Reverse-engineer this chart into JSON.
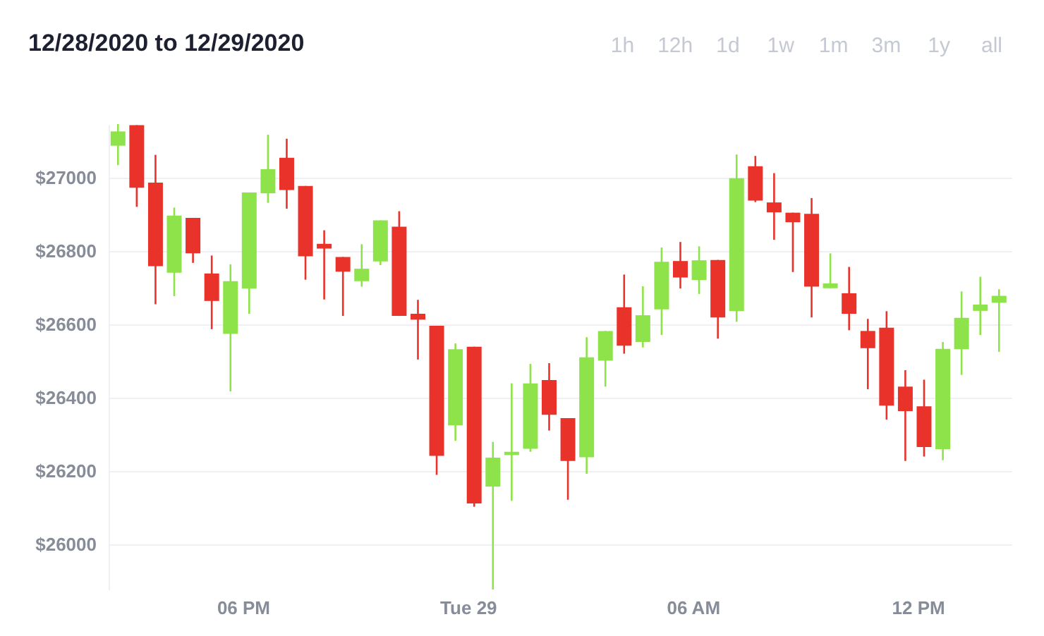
{
  "chart_data": {
    "type": "candlestick",
    "title": "12/28/2020 to 12/29/2020",
    "annotations": [
      "1h",
      "12h",
      "1d",
      "1w",
      "1m",
      "3m",
      "1y",
      "all"
    ],
    "x": [
      "2020-12-28T14:40",
      "2020-12-28T15:10",
      "2020-12-28T15:40",
      "2020-12-28T16:10",
      "2020-12-28T16:40",
      "2020-12-28T17:10",
      "2020-12-28T17:40",
      "2020-12-28T18:10",
      "2020-12-28T18:40",
      "2020-12-28T19:10",
      "2020-12-28T19:40",
      "2020-12-28T20:10",
      "2020-12-28T20:40",
      "2020-12-28T21:10",
      "2020-12-28T21:40",
      "2020-12-28T22:10",
      "2020-12-28T22:40",
      "2020-12-28T23:10",
      "2020-12-28T23:40",
      "2020-12-29T00:10",
      "2020-12-29T00:40",
      "2020-12-29T01:10",
      "2020-12-29T01:40",
      "2020-12-29T02:10",
      "2020-12-29T02:40",
      "2020-12-29T03:10",
      "2020-12-29T03:40",
      "2020-12-29T04:10",
      "2020-12-29T04:40",
      "2020-12-29T05:10",
      "2020-12-29T05:40",
      "2020-12-29T06:10",
      "2020-12-29T06:40",
      "2020-12-29T07:10",
      "2020-12-29T07:40",
      "2020-12-29T08:10",
      "2020-12-29T08:40",
      "2020-12-29T09:10",
      "2020-12-29T09:40",
      "2020-12-29T10:10",
      "2020-12-29T10:40",
      "2020-12-29T11:10",
      "2020-12-29T11:40",
      "2020-12-29T12:10",
      "2020-12-29T12:40",
      "2020-12-29T13:10",
      "2020-12-29T13:40",
      "2020-12-29T14:10"
    ],
    "ohlc": [
      [
        27088,
        27147,
        27035,
        27127
      ],
      [
        27144,
        27144,
        26921,
        26973
      ],
      [
        26987,
        27063,
        26655,
        26759
      ],
      [
        26741,
        26919,
        26677,
        26897
      ],
      [
        26891,
        26891,
        26768,
        26794
      ],
      [
        26739,
        26788,
        26587,
        26664
      ],
      [
        26574,
        26764,
        26417,
        26718
      ],
      [
        26698,
        26960,
        26629,
        26960
      ],
      [
        26958,
        27118,
        26932,
        27024
      ],
      [
        27055,
        27107,
        26916,
        26967
      ],
      [
        26978,
        26978,
        26722,
        26786
      ],
      [
        26820,
        26857,
        26668,
        26807
      ],
      [
        26784,
        26784,
        26623,
        26744
      ],
      [
        26718,
        26819,
        26703,
        26752
      ],
      [
        26772,
        26884,
        26762,
        26884
      ],
      [
        26867,
        26909,
        26623,
        26623
      ],
      [
        26629,
        26667,
        26504,
        26613
      ],
      [
        26596,
        26596,
        26189,
        26241
      ],
      [
        26324,
        26548,
        26282,
        26532
      ],
      [
        26539,
        26539,
        26102,
        26111
      ],
      [
        26157,
        26279,
        25876,
        26236
      ],
      [
        26243,
        26439,
        26118,
        26252
      ],
      [
        26260,
        26492,
        26252,
        26439
      ],
      [
        26448,
        26494,
        26310,
        26353
      ],
      [
        26344,
        26344,
        26121,
        26227
      ],
      [
        26237,
        26565,
        26192,
        26510
      ],
      [
        26501,
        26582,
        26430,
        26582
      ],
      [
        26647,
        26736,
        26520,
        26542
      ],
      [
        26552,
        26704,
        26537,
        26625
      ],
      [
        26641,
        26810,
        26571,
        26771
      ],
      [
        26773,
        26825,
        26698,
        26728
      ],
      [
        26721,
        26813,
        26683,
        26775
      ],
      [
        26776,
        26776,
        26561,
        26619
      ],
      [
        26636,
        27064,
        26607,
        26999
      ],
      [
        27032,
        27060,
        26934,
        26938
      ],
      [
        26933,
        27013,
        26831,
        26906
      ],
      [
        26905,
        26905,
        26743,
        26879
      ],
      [
        26902,
        26945,
        26619,
        26703
      ],
      [
        26699,
        26794,
        26699,
        26712
      ],
      [
        26685,
        26757,
        26584,
        26629
      ],
      [
        26582,
        26615,
        26423,
        26535
      ],
      [
        26591,
        26636,
        26340,
        26378
      ],
      [
        26430,
        26475,
        26227,
        26363
      ],
      [
        26376,
        26449,
        26239,
        26265
      ],
      [
        26259,
        26552,
        26229,
        26533
      ],
      [
        26532,
        26690,
        26462,
        26618
      ],
      [
        26637,
        26730,
        26571,
        26654
      ],
      [
        26659,
        26696,
        26525,
        26678
      ]
    ],
    "colors": [
      "#8fe34a",
      "#e8322a",
      "#e8322a",
      "#8fe34a",
      "#e8322a",
      "#e8322a",
      "#8fe34a",
      "#8fe34a",
      "#8fe34a",
      "#e8322a",
      "#e8322a",
      "#e8322a",
      "#e8322a",
      "#8fe34a",
      "#8fe34a",
      "#e8322a",
      "#e8322a",
      "#e8322a",
      "#8fe34a",
      "#e8322a",
      "#8fe34a",
      "#8fe34a",
      "#8fe34a",
      "#e8322a",
      "#e8322a",
      "#8fe34a",
      "#8fe34a",
      "#e8322a",
      "#8fe34a",
      "#8fe34a",
      "#e8322a",
      "#8fe34a",
      "#e8322a",
      "#8fe34a",
      "#e8322a",
      "#e8322a",
      "#e8322a",
      "#e8322a",
      "#8fe34a",
      "#e8322a",
      "#e8322a",
      "#e8322a",
      "#e8322a",
      "#e8322a",
      "#8fe34a",
      "#8fe34a",
      "#8fe34a",
      "#8fe34a"
    ],
    "xlim": [
      "2020-12-28T14:25",
      "2020-12-29T14:30"
    ],
    "xticks": [
      {
        "value": "2020-12-28T18:00",
        "label": "06 PM"
      },
      {
        "value": "2020-12-29T00:00",
        "label": "Tue 29"
      },
      {
        "value": "2020-12-29T06:00",
        "label": "06 AM"
      },
      {
        "value": "2020-12-29T12:00",
        "label": "12 PM"
      }
    ],
    "ylim": [
      25876,
      27147
    ],
    "yticks": [
      {
        "value": 26000,
        "label": "$26000"
      },
      {
        "value": 26200,
        "label": "$26200"
      },
      {
        "value": 26400,
        "label": "$26400"
      },
      {
        "value": 26600,
        "label": "$26600"
      },
      {
        "value": 26800,
        "label": "$26800"
      },
      {
        "value": 27000,
        "label": "$27000"
      }
    ],
    "grid": "y"
  }
}
